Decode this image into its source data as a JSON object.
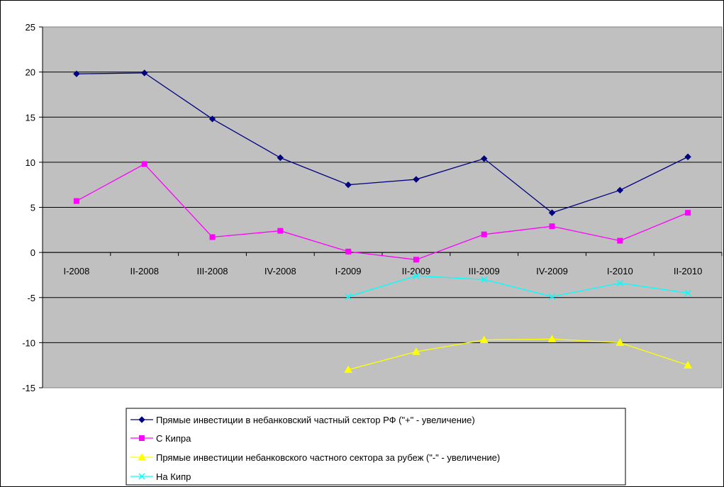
{
  "chart_data": {
    "type": "line",
    "categories": [
      "I-2008",
      "II-2008",
      "III-2008",
      "IV-2008",
      "I-2009",
      "II-2009",
      "III-2009",
      "IV-2009",
      "I-2010",
      "II-2010"
    ],
    "ylim": [
      -15,
      25
    ],
    "yticks": [
      25,
      20,
      15,
      10,
      5,
      0,
      -5,
      -10,
      -15
    ],
    "grid": true,
    "legend_position": "bottom",
    "plot_background": "#c0c0c0",
    "series": [
      {
        "name": "Прямые инвестиции в небанковский частный сектор РФ (\"+\" - увеличение)",
        "color": "#000080",
        "marker": "diamond",
        "values": [
          19.8,
          19.9,
          14.8,
          10.5,
          7.5,
          8.1,
          10.4,
          4.4,
          6.9,
          10.6
        ]
      },
      {
        "name": "С Кипра",
        "color": "#ff00ff",
        "marker": "square",
        "values": [
          5.7,
          9.8,
          1.7,
          2.4,
          0.1,
          -0.8,
          2.0,
          2.9,
          1.3,
          4.4
        ]
      },
      {
        "name": "Прямые инвестиции небанковского частного сектора за рубеж (\"-\" - увеличение)",
        "color": "#ffff00",
        "marker": "triangle",
        "values": [
          null,
          null,
          null,
          null,
          -13.0,
          -11.0,
          -9.7,
          -9.6,
          -10.0,
          -12.5
        ]
      },
      {
        "name": "На Кипр",
        "color": "#00ffff",
        "marker": "x",
        "values": [
          null,
          null,
          null,
          null,
          -4.9,
          -2.6,
          -3.0,
          -4.9,
          -3.4,
          -4.5
        ]
      }
    ]
  }
}
